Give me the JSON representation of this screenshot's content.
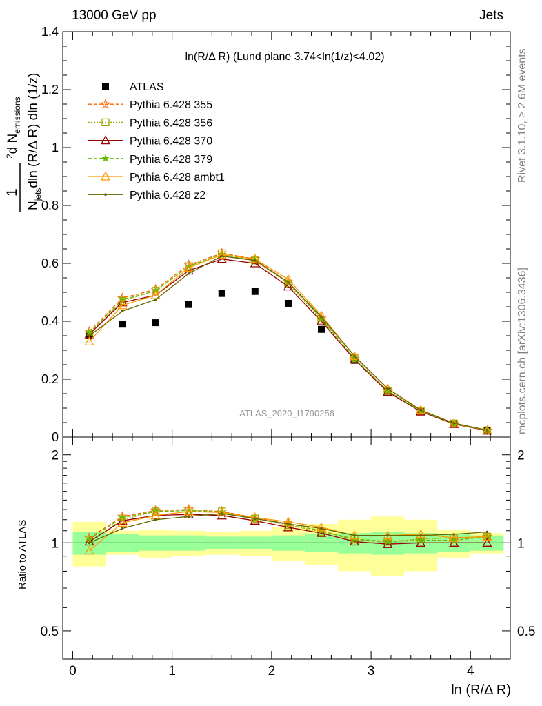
{
  "header": {
    "left": "13000 GeV pp",
    "right": "Jets"
  },
  "side": {
    "rivet": "Rivet 3.1.10, ≥ 2.6M events",
    "mcplots": "mcplots.cern.ch [arXiv:1306.3436]"
  },
  "watermark": "ATLAS_2020_I1790256",
  "colors": {
    "data": "#000000",
    "band_inner": "#99ff99",
    "band_outer": "#ffff99",
    "p355": "#ff6600",
    "p356": "#99aa00",
    "p370": "#990000",
    "p379": "#66bb00",
    "pambt1": "#ff9900",
    "pz2": "#666600"
  },
  "chart_data": [
    {
      "type": "scatter",
      "panel": "main",
      "title": "ln(R/Δ R) (Lund plane 3.74<ln(1/z)<4.02)",
      "ylabel": "1/N_jets d² N_emissions / dln (R/Δ R) dln (1/z)",
      "xlim": [
        -0.1,
        4.4
      ],
      "ylim": [
        0,
        1.4
      ],
      "yticks": [
        "0",
        "0.2",
        "0.4",
        "0.6",
        "0.8",
        "1",
        "1.2",
        "1.4"
      ],
      "x": [
        0.167,
        0.5,
        0.833,
        1.167,
        1.5,
        1.833,
        2.167,
        2.5,
        2.833,
        3.167,
        3.5,
        3.833,
        4.167
      ],
      "series": [
        {
          "name": "ATLAS",
          "marker": "square",
          "values": [
            0.35,
            0.39,
            0.395,
            0.458,
            0.496,
            0.503,
            0.462,
            0.372,
            0.265,
            0.158,
            0.088,
            0.045,
            0.022
          ]
        },
        {
          "name": "Pythia 6.428 355",
          "marker": "star",
          "dash": "dashed",
          "values": [
            0.365,
            0.48,
            0.51,
            0.595,
            0.635,
            0.615,
            0.535,
            0.41,
            0.27,
            0.16,
            0.09,
            0.046,
            0.023
          ]
        },
        {
          "name": "Pythia 6.428 356",
          "marker": "open-square",
          "dash": "dotted",
          "values": [
            0.355,
            0.47,
            0.505,
            0.59,
            0.635,
            0.61,
            0.53,
            0.405,
            0.272,
            0.16,
            0.091,
            0.047,
            0.023
          ]
        },
        {
          "name": "Pythia 6.428 370",
          "marker": "open-triangle",
          "dash": "solid",
          "values": [
            0.355,
            0.465,
            0.49,
            0.575,
            0.615,
            0.6,
            0.52,
            0.4,
            0.268,
            0.156,
            0.088,
            0.045,
            0.022
          ]
        },
        {
          "name": "Pythia 6.428 379",
          "marker": "small-star",
          "dash": "dashed",
          "values": [
            0.36,
            0.475,
            0.505,
            0.59,
            0.63,
            0.61,
            0.535,
            0.41,
            0.272,
            0.16,
            0.09,
            0.046,
            0.023
          ]
        },
        {
          "name": "Pythia 6.428 ambt1",
          "marker": "open-triangle",
          "dash": "solid",
          "values": [
            0.33,
            0.455,
            0.49,
            0.585,
            0.63,
            0.615,
            0.545,
            0.42,
            0.28,
            0.168,
            0.094,
            0.047,
            0.023
          ]
        },
        {
          "name": "Pythia 6.428 z2",
          "marker": "dot",
          "dash": "solid",
          "values": [
            0.35,
            0.435,
            0.475,
            0.565,
            0.625,
            0.61,
            0.535,
            0.415,
            0.28,
            0.167,
            0.093,
            0.048,
            0.024
          ]
        }
      ]
    },
    {
      "type": "line",
      "panel": "ratio",
      "ylabel": "Ratio to ATLAS",
      "xlabel": "ln (R/Δ R)",
      "xlim": [
        -0.1,
        4.4
      ],
      "ylim": [
        0.4,
        2.3
      ],
      "log_y": true,
      "yticks": [
        "0.5",
        "1",
        "2"
      ],
      "xticks": [
        "0",
        "1",
        "2",
        "3",
        "4"
      ],
      "x_edges": [
        0.0,
        0.333,
        0.667,
        1.0,
        1.333,
        1.667,
        2.0,
        2.333,
        2.667,
        3.0,
        3.333,
        3.667,
        4.0,
        4.333
      ],
      "band_inner": {
        "low": [
          0.91,
          0.93,
          0.94,
          0.94,
          0.95,
          0.95,
          0.94,
          0.93,
          0.92,
          0.91,
          0.92,
          0.93,
          0.94
        ],
        "high": [
          1.09,
          1.07,
          1.06,
          1.06,
          1.05,
          1.05,
          1.06,
          1.07,
          1.08,
          1.09,
          1.08,
          1.07,
          1.06
        ]
      },
      "band_outer": {
        "low": [
          0.83,
          0.91,
          0.89,
          0.9,
          0.91,
          0.9,
          0.87,
          0.84,
          0.8,
          0.77,
          0.8,
          0.89,
          0.92
        ],
        "high": [
          1.18,
          1.1,
          1.11,
          1.1,
          1.09,
          1.1,
          1.13,
          1.16,
          1.2,
          1.23,
          1.2,
          1.11,
          1.08
        ]
      },
      "x": [
        0.167,
        0.5,
        0.833,
        1.167,
        1.5,
        1.833,
        2.167,
        2.5,
        2.833,
        3.167,
        3.5,
        3.833,
        4.167
      ],
      "series": [
        {
          "name": "Pythia 6.428 355",
          "values": [
            1.04,
            1.23,
            1.29,
            1.3,
            1.28,
            1.22,
            1.16,
            1.1,
            1.02,
            1.01,
            1.02,
            1.02,
            1.05
          ]
        },
        {
          "name": "Pythia 6.428 356",
          "values": [
            1.01,
            1.2,
            1.28,
            1.29,
            1.28,
            1.21,
            1.15,
            1.09,
            1.03,
            1.01,
            1.03,
            1.04,
            1.05
          ]
        },
        {
          "name": "Pythia 6.428 370",
          "values": [
            1.01,
            1.19,
            1.24,
            1.25,
            1.24,
            1.19,
            1.13,
            1.08,
            1.01,
            0.99,
            1.0,
            1.0,
            1.0
          ]
        },
        {
          "name": "Pythia 6.428 379",
          "values": [
            1.03,
            1.22,
            1.28,
            1.29,
            1.27,
            1.21,
            1.16,
            1.1,
            1.03,
            1.01,
            1.02,
            1.02,
            1.05
          ]
        },
        {
          "name": "Pythia 6.428 ambt1",
          "values": [
            0.94,
            1.17,
            1.24,
            1.28,
            1.27,
            1.22,
            1.18,
            1.13,
            1.06,
            1.06,
            1.07,
            1.04,
            1.05
          ]
        },
        {
          "name": "Pythia 6.428 z2",
          "values": [
            1.0,
            1.12,
            1.2,
            1.23,
            1.26,
            1.21,
            1.16,
            1.12,
            1.06,
            1.06,
            1.06,
            1.07,
            1.09
          ]
        }
      ]
    }
  ]
}
